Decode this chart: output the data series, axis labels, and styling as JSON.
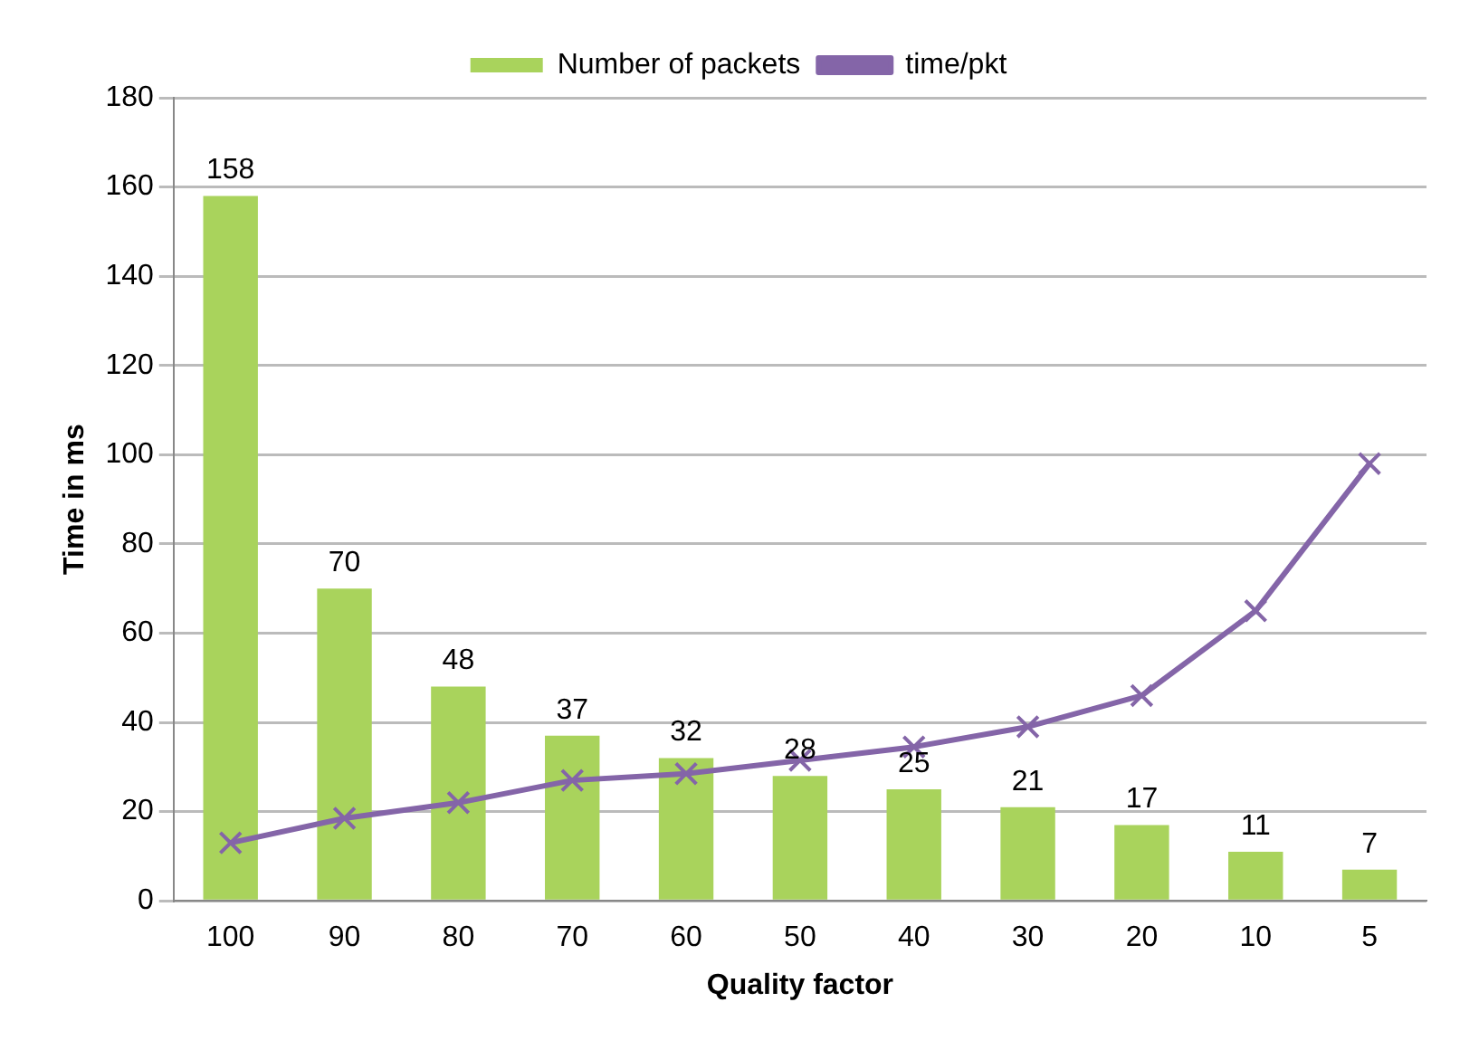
{
  "chart_data": {
    "type": "bar",
    "xlabel": "Quality factor",
    "ylabel": "Time in ms",
    "categories": [
      "100",
      "90",
      "80",
      "70",
      "60",
      "50",
      "40",
      "30",
      "20",
      "10",
      "5"
    ],
    "series": [
      {
        "name": "Number of packets",
        "color": "#a9d35c",
        "values": [
          158,
          70,
          48,
          37,
          32,
          28,
          25,
          21,
          17,
          11,
          7
        ],
        "value_labels": [
          "158",
          "70",
          "48",
          "37",
          "32",
          "28",
          "25",
          "21",
          "17",
          "11",
          "7"
        ]
      },
      {
        "name": "time/pkt",
        "type": "line",
        "color": "#8465a8",
        "marker": "cross",
        "line_style": "solid",
        "values": [
          13,
          18.5,
          22,
          27,
          28.5,
          31.5,
          34.5,
          39,
          46,
          65,
          98
        ]
      }
    ],
    "ylim": [
      0,
      180
    ],
    "yticks": [
      0,
      20,
      40,
      60,
      80,
      100,
      120,
      140,
      160,
      180
    ],
    "grid": "y",
    "legend": "top"
  }
}
